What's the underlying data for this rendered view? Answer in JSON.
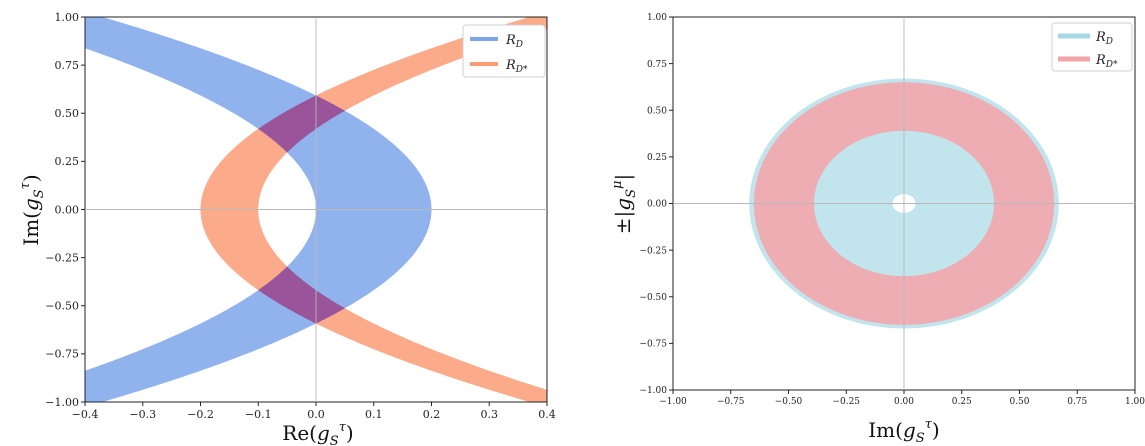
{
  "chart_data": [
    {
      "type": "area",
      "xlabel": "Re(g_S^τ)",
      "ylabel": "Im(g_S^τ)",
      "xlim": [
        -0.4,
        0.4
      ],
      "ylim": [
        -1.0,
        1.0
      ],
      "xticks": [
        "−0.4",
        "−0.3",
        "−0.2",
        "−0.1",
        "0.0",
        "0.1",
        "0.2",
        "0.3",
        "0.4"
      ],
      "xtick_values": [
        -0.4,
        -0.3,
        -0.2,
        -0.1,
        0.0,
        0.1,
        0.2,
        0.3,
        0.4
      ],
      "yticks": [
        "−1.00",
        "−0.75",
        "−0.50",
        "−0.25",
        "0.00",
        "0.25",
        "0.50",
        "0.75",
        "1.00"
      ],
      "ytick_values": [
        -1.0,
        -0.75,
        -0.5,
        -0.25,
        0.0,
        0.25,
        0.5,
        0.75,
        1.0
      ],
      "legend_position": "top-right",
      "series": [
        {
          "name": "R_D",
          "color": "#7ea6ea",
          "shape": "parabolic band opening left: x between (c_in - k·y²) and (c_out - k·y²)",
          "vertex_inner": 0.0,
          "vertex_outer": 0.2,
          "curvature_k": 0.57
        },
        {
          "name": "R_D*",
          "color": "#fa9b76",
          "shape": "parabolic band opening right: x between (c_in + k·y²) and (c_out + k·y²)",
          "vertex_inner": -0.1,
          "vertex_outer": -0.2,
          "curvature_k": 0.57
        }
      ],
      "overlap_color": "#9a4f96"
    },
    {
      "type": "area",
      "xlabel": "Im(g_S^τ)",
      "ylabel": "±|g_S^μ|",
      "xlim": [
        -1.0,
        1.0
      ],
      "ylim": [
        -1.0,
        1.0
      ],
      "xticks": [
        "−1.00",
        "−0.75",
        "−0.50",
        "−0.25",
        "0.00",
        "0.25",
        "0.50",
        "0.75",
        "1.00"
      ],
      "xtick_values": [
        -1.0,
        -0.75,
        -0.5,
        -0.25,
        0.0,
        0.25,
        0.5,
        0.75,
        1.0
      ],
      "yticks": [
        "−1.00",
        "−0.75",
        "−0.50",
        "−0.25",
        "0.00",
        "0.25",
        "0.50",
        "0.75",
        "1.00"
      ],
      "ytick_values": [
        -1.0,
        -0.75,
        -0.5,
        -0.25,
        0.0,
        0.25,
        0.5,
        0.75,
        1.0
      ],
      "legend_position": "top-right",
      "series": [
        {
          "name": "R_D",
          "color": "#a8d8e6",
          "shape": "disk annulus",
          "r_inner": 0.05,
          "r_outer": 0.67
        },
        {
          "name": "R_D*",
          "color": "#f4a3a8",
          "shape": "annulus",
          "r_inner": 0.39,
          "r_outer": 0.65
        }
      ]
    }
  ]
}
